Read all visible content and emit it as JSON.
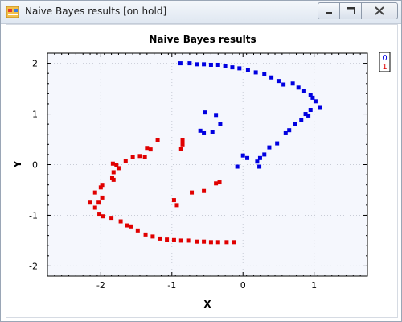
{
  "window": {
    "title": "Naive Bayes results [on hold]"
  },
  "colors": {
    "class0": "#0000e0",
    "class1": "#e00000",
    "plot_bg": "#f5f7fd",
    "grid": "#c8ccd6"
  },
  "chart_data": {
    "type": "scatter",
    "title": "Naive Bayes results",
    "xlabel": "X",
    "ylabel": "Y",
    "xlim": [
      -2.75,
      1.75
    ],
    "ylim": [
      -2.2,
      2.2
    ],
    "xticks": [
      -2,
      -1,
      0,
      1
    ],
    "yticks": [
      -2,
      -1,
      0,
      1,
      2
    ],
    "grid": true,
    "legend": "top-right",
    "series": [
      {
        "name": "0",
        "color": "#0000e0",
        "points": [
          [
            -0.88,
            2.0
          ],
          [
            -0.75,
            2.0
          ],
          [
            -0.65,
            1.98
          ],
          [
            -0.55,
            1.98
          ],
          [
            -0.45,
            1.97
          ],
          [
            -0.35,
            1.97
          ],
          [
            -0.25,
            1.95
          ],
          [
            -0.15,
            1.92
          ],
          [
            -0.05,
            1.9
          ],
          [
            0.07,
            1.87
          ],
          [
            0.18,
            1.82
          ],
          [
            0.3,
            1.78
          ],
          [
            0.4,
            1.72
          ],
          [
            0.5,
            1.65
          ],
          [
            0.57,
            1.58
          ],
          [
            0.7,
            1.6
          ],
          [
            0.78,
            1.52
          ],
          [
            0.85,
            1.46
          ],
          [
            0.95,
            1.38
          ],
          [
            0.98,
            1.32
          ],
          [
            1.02,
            1.25
          ],
          [
            1.08,
            1.12
          ],
          [
            0.95,
            1.08
          ],
          [
            0.88,
            1.0
          ],
          [
            0.92,
            0.97
          ],
          [
            0.82,
            0.88
          ],
          [
            0.73,
            0.8
          ],
          [
            0.65,
            0.68
          ],
          [
            0.6,
            0.62
          ],
          [
            0.48,
            0.42
          ],
          [
            0.37,
            0.34
          ],
          [
            0.3,
            0.2
          ],
          [
            0.24,
            0.13
          ],
          [
            0.2,
            0.06
          ],
          [
            0.06,
            0.13
          ],
          [
            0.0,
            0.18
          ],
          [
            -0.08,
            -0.04
          ],
          [
            0.23,
            -0.04
          ],
          [
            -0.6,
            0.67
          ],
          [
            -0.55,
            0.62
          ],
          [
            -0.43,
            0.65
          ],
          [
            -0.32,
            0.8
          ],
          [
            -0.38,
            0.98
          ],
          [
            -0.53,
            1.03
          ]
        ]
      },
      {
        "name": "1",
        "color": "#e00000",
        "points": [
          [
            -0.13,
            -1.53
          ],
          [
            -0.23,
            -1.53
          ],
          [
            -0.35,
            -1.53
          ],
          [
            -0.45,
            -1.53
          ],
          [
            -0.55,
            -1.52
          ],
          [
            -0.65,
            -1.52
          ],
          [
            -0.77,
            -1.5
          ],
          [
            -0.87,
            -1.5
          ],
          [
            -0.97,
            -1.49
          ],
          [
            -1.07,
            -1.48
          ],
          [
            -1.17,
            -1.46
          ],
          [
            -1.27,
            -1.42
          ],
          [
            -1.37,
            -1.38
          ],
          [
            -1.48,
            -1.3
          ],
          [
            -1.58,
            -1.22
          ],
          [
            -1.63,
            -1.2
          ],
          [
            -1.72,
            -1.12
          ],
          [
            -1.85,
            -1.05
          ],
          [
            -1.97,
            -1.02
          ],
          [
            -2.02,
            -0.97
          ],
          [
            -2.08,
            -0.85
          ],
          [
            -2.15,
            -0.75
          ],
          [
            -2.03,
            -0.75
          ],
          [
            -1.98,
            -0.65
          ],
          [
            -2.08,
            -0.55
          ],
          [
            -2.0,
            -0.45
          ],
          [
            -1.98,
            -0.4
          ],
          [
            -1.84,
            -0.27
          ],
          [
            -1.82,
            -0.3
          ],
          [
            -1.82,
            -0.15
          ],
          [
            -1.75,
            -0.07
          ],
          [
            -1.78,
            0.0
          ],
          [
            -1.83,
            0.02
          ],
          [
            -1.65,
            0.07
          ],
          [
            -1.55,
            0.15
          ],
          [
            -1.45,
            0.17
          ],
          [
            -1.38,
            0.15
          ],
          [
            -1.3,
            0.3
          ],
          [
            -1.35,
            0.33
          ],
          [
            -1.2,
            0.48
          ],
          [
            -0.85,
            0.48
          ],
          [
            -0.85,
            0.4
          ],
          [
            -0.87,
            0.31
          ],
          [
            -0.72,
            -0.55
          ],
          [
            -0.55,
            -0.52
          ],
          [
            -0.38,
            -0.37
          ],
          [
            -0.33,
            -0.35
          ],
          [
            -0.93,
            -0.8
          ],
          [
            -0.97,
            -0.7
          ]
        ]
      }
    ]
  }
}
